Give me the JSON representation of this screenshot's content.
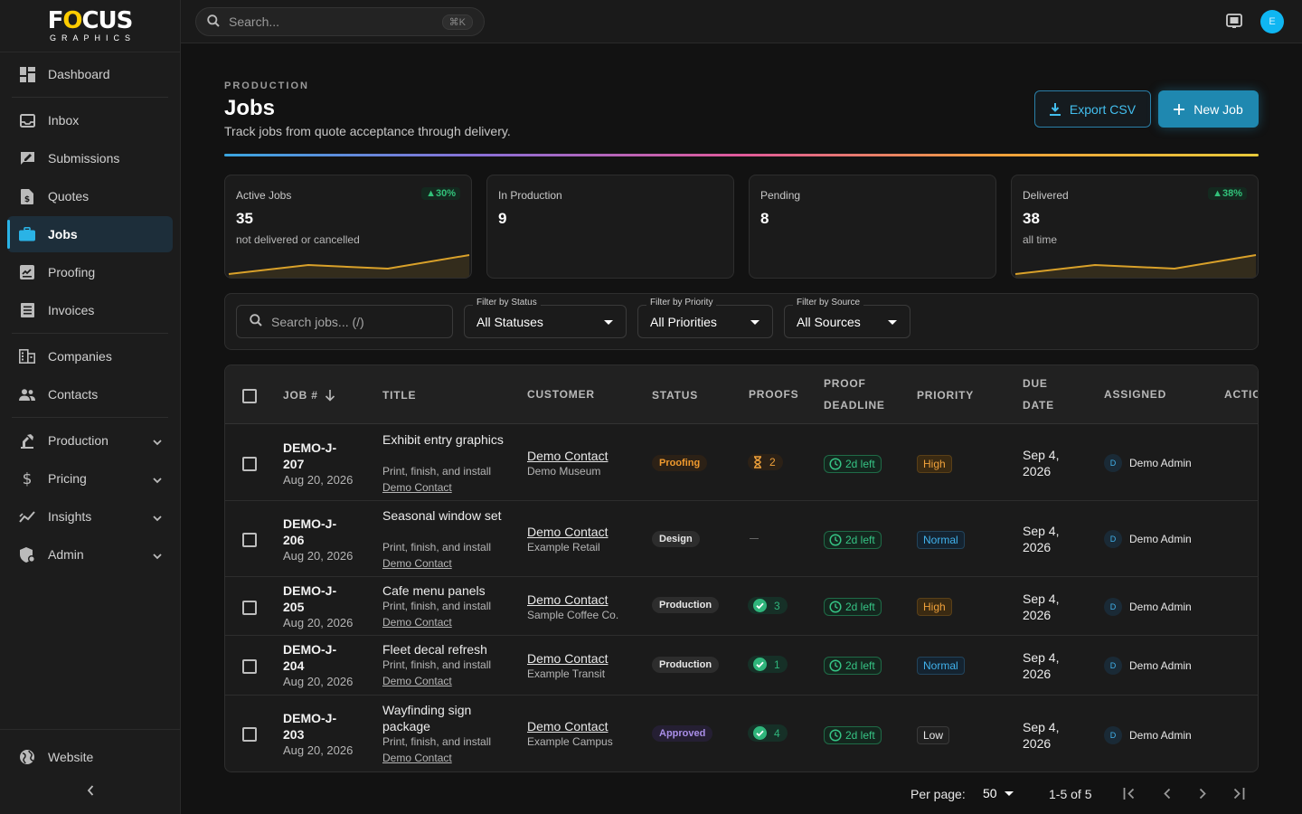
{
  "brand": {
    "logo_main_pre": "F",
    "logo_main_o": "O",
    "logo_main_post": "CUS",
    "logo_sub": "GRAPHICS"
  },
  "sidebar": {
    "items": [
      {
        "label": "Dashboard",
        "icon": "dashboard-icon"
      },
      {
        "label": "Inbox",
        "icon": "inbox-icon"
      },
      {
        "label": "Submissions",
        "icon": "submissions-icon"
      },
      {
        "label": "Quotes",
        "icon": "quotes-icon"
      },
      {
        "label": "Jobs",
        "icon": "briefcase-icon",
        "active": true
      },
      {
        "label": "Proofing",
        "icon": "proofing-icon"
      },
      {
        "label": "Invoices",
        "icon": "invoices-icon"
      },
      {
        "label": "Companies",
        "icon": "companies-icon"
      },
      {
        "label": "Contacts",
        "icon": "contacts-icon"
      },
      {
        "label": "Production",
        "icon": "production-icon",
        "expandable": true
      },
      {
        "label": "Pricing",
        "icon": "dollar-icon",
        "expandable": true
      },
      {
        "label": "Insights",
        "icon": "insights-icon",
        "expandable": true
      },
      {
        "label": "Admin",
        "icon": "admin-icon",
        "expandable": true
      }
    ],
    "website_label": "Website"
  },
  "topbar": {
    "search_placeholder": "Search...",
    "shortcut": "⌘K",
    "avatar_initial": "E"
  },
  "header": {
    "eyebrow": "PRODUCTION",
    "title": "Jobs",
    "subtitle": "Track jobs from quote acceptance through delivery.",
    "export_label": "Export CSV",
    "new_label": "New Job"
  },
  "stats": [
    {
      "label": "Active Jobs",
      "value": "35",
      "note": "not delivered or cancelled",
      "badge": "▲30%"
    },
    {
      "label": "In Production",
      "value": "9",
      "note": "",
      "badge": ""
    },
    {
      "label": "Pending",
      "value": "8",
      "note": "",
      "badge": ""
    },
    {
      "label": "Delivered",
      "value": "38",
      "note": "all time",
      "badge": "▲38%"
    }
  ],
  "filters": {
    "search_placeholder": "Search jobs... (/)",
    "status_caption": "Filter by Status",
    "status_value": "All Statuses",
    "priority_caption": "Filter by Priority",
    "priority_value": "All Priorities",
    "source_caption": "Filter by Source",
    "source_value": "All Sources"
  },
  "table": {
    "headers": {
      "job": "JOB #",
      "title": "TITLE",
      "customer": "CUSTOMER",
      "status": "STATUS",
      "proofs": "PROOFS",
      "proof_deadline_1": "PROOF",
      "proof_deadline_2": "DEADLINE",
      "priority": "PRIORITY",
      "due_1": "DUE",
      "due_2": "DATE",
      "assigned": "ASSIGNED",
      "actions": "ACTIONS"
    },
    "rows": [
      {
        "job_id": "DEMO-J-207",
        "date": "Aug 20, 2026",
        "title": "Exhibit entry graphics",
        "desc": "Print, finish, and install",
        "link": "Demo Contact",
        "customer": "Demo Contact",
        "org": "Demo Museum",
        "status": "Proofing",
        "proof_count": "2",
        "proof_state": "waiting",
        "deadline": "2d left",
        "priority": "High",
        "due": "Sep 4, 2026",
        "assigned": "Demo Admin",
        "assigned_initial": "D"
      },
      {
        "job_id": "DEMO-J-206",
        "date": "Aug 20, 2026",
        "title": "Seasonal window set",
        "desc": "Print, finish, and install",
        "link": "Demo Contact",
        "customer": "Demo Contact",
        "org": "Example Retail",
        "status": "Design",
        "proof_count": "",
        "proof_state": "none",
        "deadline": "2d left",
        "priority": "Normal",
        "due": "Sep 4, 2026",
        "assigned": "Demo Admin",
        "assigned_initial": "D"
      },
      {
        "job_id": "DEMO-J-205",
        "date": "Aug 20, 2026",
        "title": "Cafe menu panels",
        "desc": "Print, finish, and install",
        "link": "Demo Contact",
        "customer": "Demo Contact",
        "org": "Sample Coffee Co.",
        "status": "Production",
        "proof_count": "3",
        "proof_state": "approved",
        "deadline": "2d left",
        "priority": "High",
        "due": "Sep 4, 2026",
        "assigned": "Demo Admin",
        "assigned_initial": "D"
      },
      {
        "job_id": "DEMO-J-204",
        "date": "Aug 20, 2026",
        "title": "Fleet decal refresh",
        "desc": "Print, finish, and install",
        "link": "Demo Contact",
        "customer": "Demo Contact",
        "org": "Example Transit",
        "status": "Production",
        "proof_count": "1",
        "proof_state": "approved",
        "deadline": "2d left",
        "priority": "Normal",
        "due": "Sep 4, 2026",
        "assigned": "Demo Admin",
        "assigned_initial": "D"
      },
      {
        "job_id": "DEMO-J-203",
        "date": "Aug 20, 2026",
        "title": "Wayfinding sign package",
        "desc": "Print, finish, and install",
        "link": "Demo Contact",
        "customer": "Demo Contact",
        "org": "Example Campus",
        "status": "Approved",
        "proof_count": "4",
        "proof_state": "approved",
        "deadline": "2d left",
        "priority": "Low",
        "due": "Sep 4, 2026",
        "assigned": "Demo Admin",
        "assigned_initial": "D"
      }
    ]
  },
  "pager": {
    "per_page_label": "Per page:",
    "per_page": "50",
    "range": "1-5 of 5"
  },
  "colors": {
    "accent": "#2ab3e6",
    "success": "#36c485",
    "warning": "#f09a2e",
    "violet": "#a98ee8"
  }
}
